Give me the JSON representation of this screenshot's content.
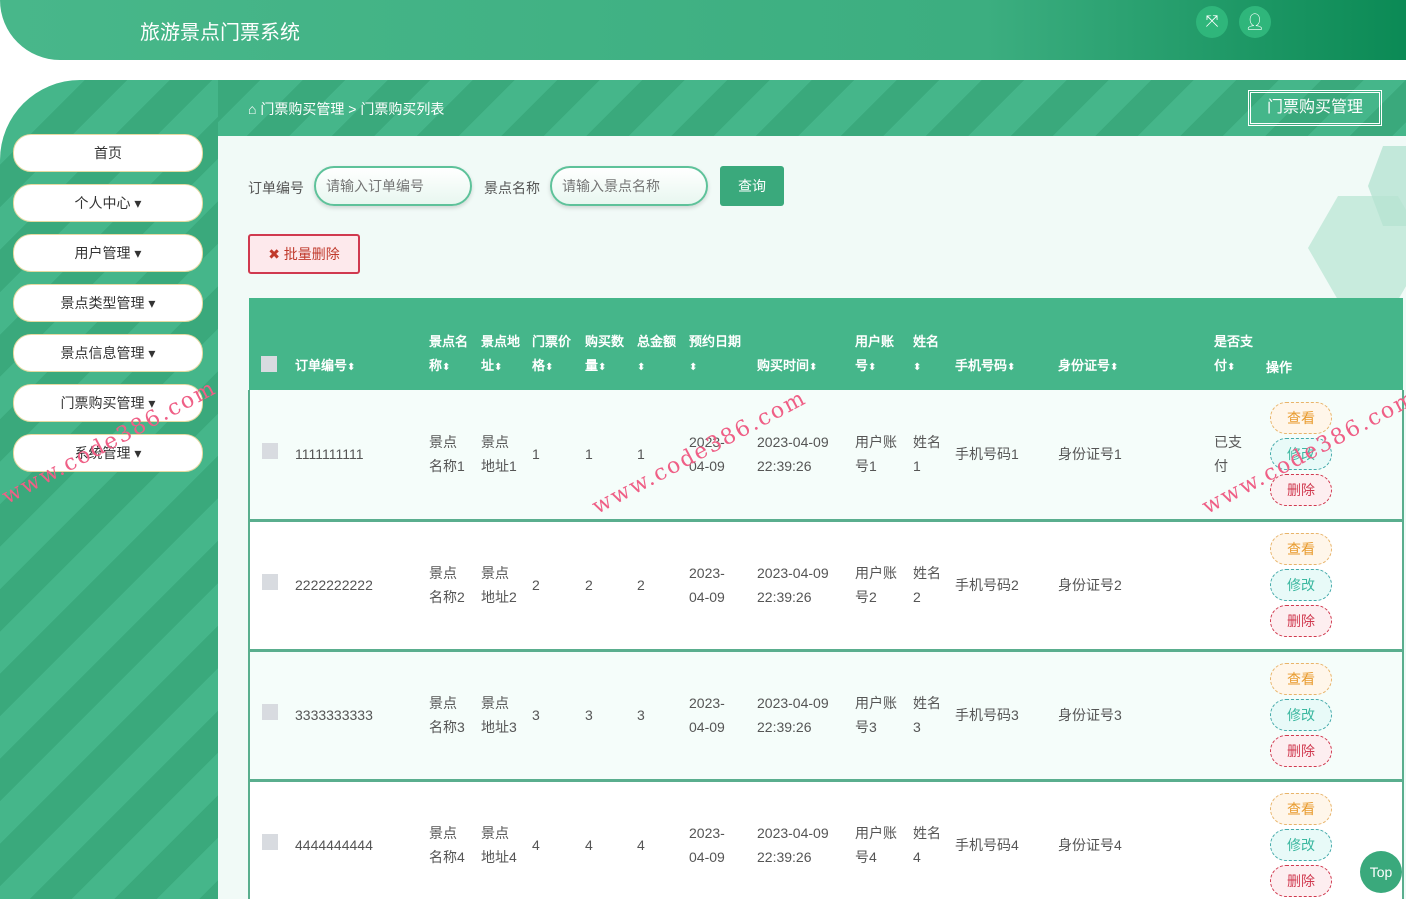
{
  "app": {
    "title": "旅游景点门票系统",
    "fullscreen_icon": "expand-icon",
    "user_icon": "user-icon"
  },
  "sidebar": {
    "items": [
      {
        "label": "首页"
      },
      {
        "label": "个人中心 ▾"
      },
      {
        "label": "用户管理 ▾"
      },
      {
        "label": "景点类型管理 ▾"
      },
      {
        "label": "景点信息管理 ▾"
      },
      {
        "label": "门票购买管理 ▾"
      },
      {
        "label": "系统管理 ▾"
      }
    ]
  },
  "breadcrumb": {
    "home_icon": "home-icon",
    "level1": "门票购买管理",
    "sep": ">",
    "level2": "门票购买列表"
  },
  "page_tag": "门票购买管理",
  "search": {
    "order_label": "订单编号",
    "order_placeholder": "请输入订单编号",
    "spot_label": "景点名称",
    "spot_placeholder": "请输入景点名称",
    "query": "查询"
  },
  "batch_delete": "✖ 批量删除",
  "table": {
    "headers": [
      "订单编号",
      "景点名称",
      "景点地址",
      "门票价格",
      "购买数量",
      "总金额",
      "预约日期",
      "购买时间",
      "用户账号",
      "姓名",
      "手机号码",
      "身份证号",
      "是否支付",
      "操作"
    ],
    "sort_icon": "⬍",
    "rows": [
      {
        "order": "1111111111",
        "spot": "景点名称1",
        "addr": "景点地址1",
        "price": "1",
        "qty": "1",
        "total": "1",
        "date": "2023-04-09",
        "time": "2023-04-09 22:39:26",
        "account": "用户账号1",
        "name": "姓名1",
        "phone": "手机号码1",
        "id": "身份证号1",
        "paid": "已支付"
      },
      {
        "order": "2222222222",
        "spot": "景点名称2",
        "addr": "景点地址2",
        "price": "2",
        "qty": "2",
        "total": "2",
        "date": "2023-04-09",
        "time": "2023-04-09 22:39:26",
        "account": "用户账号2",
        "name": "姓名2",
        "phone": "手机号码2",
        "id": "身份证号2",
        "paid": ""
      },
      {
        "order": "3333333333",
        "spot": "景点名称3",
        "addr": "景点地址3",
        "price": "3",
        "qty": "3",
        "total": "3",
        "date": "2023-04-09",
        "time": "2023-04-09 22:39:26",
        "account": "用户账号3",
        "name": "姓名3",
        "phone": "手机号码3",
        "id": "身份证号3",
        "paid": ""
      },
      {
        "order": "4444444444",
        "spot": "景点名称4",
        "addr": "景点地址4",
        "price": "4",
        "qty": "4",
        "total": "4",
        "date": "2023-04-09",
        "time": "2023-04-09 22:39:26",
        "account": "用户账号4",
        "name": "姓名4",
        "phone": "手机号码4",
        "id": "身份证号4",
        "paid": ""
      }
    ],
    "actions": {
      "view": "查看",
      "edit": "修改",
      "delete": "删除"
    }
  },
  "watermark": "www.code386.com",
  "back_to_top": "Top"
}
